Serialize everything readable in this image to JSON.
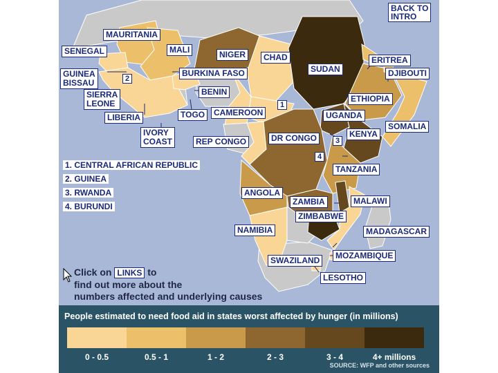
{
  "colors": {
    "ocean": "#a9b8d6",
    "non_affected_land": "#c9c9c9",
    "level_0": "#f9d596",
    "level_1": "#ecc06a",
    "level_2": "#c99a4a",
    "level_3": "#8e6630",
    "level_4": "#66481f",
    "level_5": "#3c2a0e",
    "legend_panel": "#2a5466",
    "label_text": "#1a2a7a"
  },
  "back_to_intro": "BACK TO\nINTRO",
  "countries": [
    {
      "name": "MAURITANIA",
      "level": 1
    },
    {
      "name": "SENEGAL",
      "level": 0
    },
    {
      "name": "MALI",
      "level": 1
    },
    {
      "name": "NIGER",
      "level": 4
    },
    {
      "name": "CHAD",
      "level": 0
    },
    {
      "name": "SUDAN",
      "level": 5
    },
    {
      "name": "ERITREA",
      "level": 1
    },
    {
      "name": "DJIBOUTI",
      "level": 0
    },
    {
      "name": "GUINEA\nBISSAU",
      "level": 0
    },
    {
      "name": "BURKINA FASO",
      "level": 0
    },
    {
      "name": "SIERRA\nLEONE",
      "level": 0
    },
    {
      "name": "BENIN",
      "level": 0
    },
    {
      "name": "ETHIOPIA",
      "level": 2
    },
    {
      "name": "LIBERIA",
      "level": 0
    },
    {
      "name": "TOGO",
      "level": 0
    },
    {
      "name": "CAMEROON",
      "level": 0
    },
    {
      "name": "UGANDA",
      "level": 4
    },
    {
      "name": "SOMALIA",
      "level": 1
    },
    {
      "name": "KENYA",
      "level": 4
    },
    {
      "name": "IVORY\nCOAST",
      "level": 0
    },
    {
      "name": "REP CONGO",
      "level": 0
    },
    {
      "name": "DR CONGO",
      "level": 3
    },
    {
      "name": "TANZANIA",
      "level": 2
    },
    {
      "name": "ANGOLA",
      "level": 2
    },
    {
      "name": "ZAMBIA",
      "level": 3
    },
    {
      "name": "MALAWI",
      "level": 4
    },
    {
      "name": "ZIMBABWE",
      "level": 5
    },
    {
      "name": "NAMIBIA",
      "level": 0
    },
    {
      "name": "MADAGASCAR",
      "level": null
    },
    {
      "name": "MOZAMBIQUE",
      "level": 0
    },
    {
      "name": "SWAZILAND",
      "level": 0
    },
    {
      "name": "LESOTHO",
      "level": 0
    }
  ],
  "numbered_markers": [
    "1",
    "2",
    "3",
    "4"
  ],
  "key": [
    "1. CENTRAL AFRICAN REPUBLIC",
    "2. GUINEA",
    "3. RWANDA",
    "4. BURUNDI"
  ],
  "instructions": {
    "before": "Click on",
    "link_word": "LINKS",
    "after_line1": "to",
    "line2": "find out more about the",
    "line3": "numbers affected and underlying causes"
  },
  "legend": {
    "title": "People estimated to need food aid in states worst affected by hunger (in millions)",
    "ranges": [
      "0 - 0.5",
      "0.5 - 1",
      "1 - 2",
      "2 - 3",
      "3 - 4",
      "4+ millions"
    ],
    "source": "SOURCE: WFP and other sources"
  }
}
